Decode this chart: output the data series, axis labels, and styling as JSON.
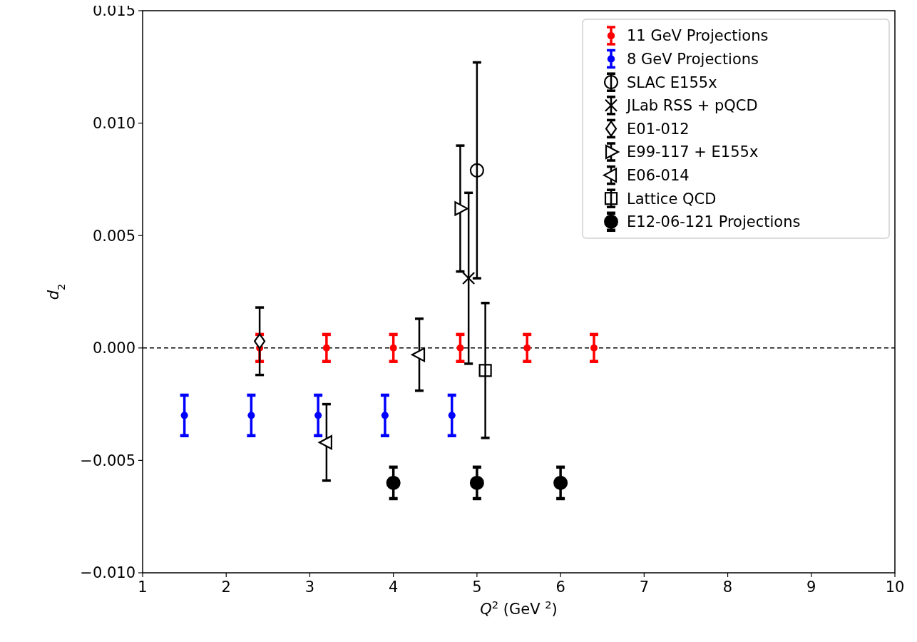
{
  "chart_data": {
    "type": "scatter",
    "xlabel": "Q$^{2}$ (GeV $^{2}$)",
    "ylabel": "d$_{2}$",
    "xlim": [
      1,
      10
    ],
    "xticks": [
      1,
      2,
      3,
      4,
      5,
      6,
      7,
      8,
      9,
      10
    ],
    "ylim": [
      -0.01,
      0.015
    ],
    "yticks": [
      {
        "value": -0.01,
        "label": "−0.010"
      },
      {
        "value": -0.005,
        "label": "−0.005"
      },
      {
        "value": 0,
        "label": "0.000"
      },
      {
        "value": 0.005,
        "label": "0.005"
      },
      {
        "value": 0.01,
        "label": "0.010"
      },
      {
        "value": 0.015,
        "label": "0.015"
      }
    ],
    "grid": false,
    "legend": "top right",
    "ref_lines": [
      {
        "axis": "y",
        "value": 0,
        "color": "#000000",
        "line_style": "dashed"
      }
    ],
    "series": [
      {
        "name": "11 GeV Projections",
        "color": "#ff0000",
        "marker": "circle",
        "x": [
          2.4,
          3.2,
          4.0,
          4.8,
          5.6,
          6.4
        ],
        "values": [
          0,
          0,
          0,
          0,
          0,
          0
        ],
        "errors": [
          0.0006,
          0.0006,
          0.0006,
          0.0006,
          0.0006,
          0.0006
        ]
      },
      {
        "name": "8 GeV Projections",
        "color": "#0000ff",
        "marker": "circle",
        "x": [
          1.5,
          2.3,
          3.1,
          3.9,
          4.7
        ],
        "values": [
          -0.003,
          -0.003,
          -0.003,
          -0.003,
          -0.003
        ],
        "errors": [
          0.0009,
          0.0009,
          0.0009,
          0.0009,
          0.0009
        ]
      },
      {
        "name": "SLAC E155x",
        "color": "#000000",
        "marker": "circle-open",
        "x": [
          5.0
        ],
        "values": [
          0.0079
        ],
        "errors": [
          0.0048
        ]
      },
      {
        "name": "JLab RSS + pQCD",
        "color": "#000000",
        "marker": "cross",
        "x": [
          4.9
        ],
        "values": [
          0.0031
        ],
        "errors": [
          0.0038
        ]
      },
      {
        "name": "E01-012",
        "color": "#000000",
        "marker": "diamond",
        "x": [
          2.4
        ],
        "values": [
          0.0003
        ],
        "errors": [
          0.0015
        ]
      },
      {
        "name": "E99-117 + E155x",
        "color": "#000000",
        "marker": "triangle-right",
        "x": [
          4.8
        ],
        "values": [
          0.0062
        ],
        "errors": [
          0.0028
        ]
      },
      {
        "name": "E06-014",
        "color": "#000000",
        "marker": "triangle-left",
        "x": [
          3.2,
          4.31
        ],
        "values": [
          -0.0042,
          -0.0003
        ],
        "errors": [
          0.0017,
          0.0016
        ]
      },
      {
        "name": "Lattice QCD",
        "color": "#000000",
        "marker": "square",
        "x": [
          5.1
        ],
        "values": [
          -0.001
        ],
        "errors": [
          0.003
        ]
      },
      {
        "name": "E12-06-121 Projections",
        "color": "#000000",
        "marker": "circle-large",
        "x": [
          4.0,
          5.0,
          6.0
        ],
        "values": [
          -0.006,
          -0.006,
          -0.006
        ],
        "errors": [
          0.0007,
          0.0007,
          0.0007
        ]
      }
    ]
  }
}
